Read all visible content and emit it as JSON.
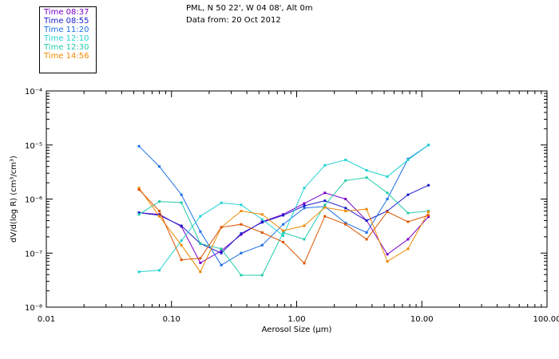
{
  "header": {
    "station": "PML, N 50 22', W 04 08', Alt 0m",
    "data_from": "Data from: 20 Oct 2012"
  },
  "chart_data": {
    "type": "line",
    "xlabel": "Aerosol Size (µm)",
    "ylabel": "dV/d(log R) (cm³/cm³)",
    "xscale": "log",
    "yscale": "log",
    "xlim": [
      0.01,
      100
    ],
    "ylim": [
      1e-08,
      0.0001
    ],
    "x_tick_labels": [
      "0.01",
      "0.10",
      "1.00",
      "10.00",
      "100.00"
    ],
    "y_tick_labels": [
      "10⁻⁸",
      "10⁻⁷",
      "10⁻⁶",
      "10⁻⁵",
      "10⁻⁴"
    ],
    "grid": false,
    "legend_position": "top-left, outside plot",
    "x": [
      0.055,
      0.08,
      0.12,
      0.17,
      0.25,
      0.36,
      0.53,
      0.78,
      1.15,
      1.68,
      2.46,
      3.62,
      5.3,
      7.75,
      11.3
    ],
    "series": [
      {
        "name": "Time 08:37",
        "color": "#7a00c8",
        "values": [
          5.6e-07,
          5.2e-07,
          3.1e-07,
          6.6e-08,
          1.1e-07,
          2.2e-07,
          3.8e-07,
          5.2e-07,
          8.3e-07,
          1.3e-06,
          1e-06,
          4e-07,
          9.5e-08,
          1.8e-07,
          4.7e-07
        ]
      },
      {
        "name": "Time 08:55",
        "color": "#1a1acc",
        "values": [
          5.6e-07,
          5e-07,
          3.2e-07,
          1.5e-07,
          1e-07,
          2.3e-07,
          3.7e-07,
          5e-07,
          7.5e-07,
          9.3e-07,
          6.8e-07,
          4e-07,
          6e-07,
          1.2e-06,
          1.8e-06
        ]
      },
      {
        "name": "Time 11:20",
        "color": "#1a6ee6",
        "values": [
          9.5e-06,
          4e-06,
          1.2e-06,
          2.5e-07,
          6e-08,
          1e-07,
          1.4e-07,
          3.4e-07,
          6.8e-07,
          7.3e-07,
          3.6e-07,
          2.4e-07,
          1e-06,
          5.5e-06,
          1e-05
        ]
      },
      {
        "name": "Time 12:10",
        "color": "#22d2d2",
        "values": [
          4.5e-08,
          4.8e-08,
          1.7e-07,
          4.8e-07,
          8.5e-07,
          7.8e-07,
          4.2e-07,
          2.1e-07,
          1.6e-06,
          4.2e-06,
          5.3e-06,
          3.4e-06,
          2.6e-06,
          5.3e-06,
          1e-05
        ]
      },
      {
        "name": "Time 12:30",
        "color": "#22ccaa",
        "values": [
          5.2e-07,
          9e-07,
          8.6e-07,
          1.5e-07,
          1.2e-07,
          3.9e-08,
          3.9e-08,
          2.4e-07,
          1.8e-07,
          7.8e-07,
          2.2e-06,
          2.5e-06,
          1.3e-06,
          5.5e-07,
          6e-07
        ]
      },
      {
        "name": "Time 14:56",
        "color": "#ee8800",
        "values": [
          1.6e-06,
          4.8e-07,
          1.4e-07,
          4.5e-08,
          3e-07,
          6e-07,
          5.2e-07,
          2.6e-07,
          3.2e-07,
          7e-07,
          6e-07,
          6.5e-07,
          7e-08,
          1.2e-07,
          5.8e-07
        ]
      },
      {
        "name": "",
        "color": "#dd5500",
        "values": [
          1.5e-06,
          6e-07,
          7.5e-08,
          8e-08,
          3e-07,
          3.4e-07,
          2.4e-07,
          1.6e-07,
          6.5e-08,
          4.8e-07,
          3.4e-07,
          1.8e-07,
          5.8e-07,
          3.8e-07,
          5e-07
        ]
      }
    ]
  }
}
